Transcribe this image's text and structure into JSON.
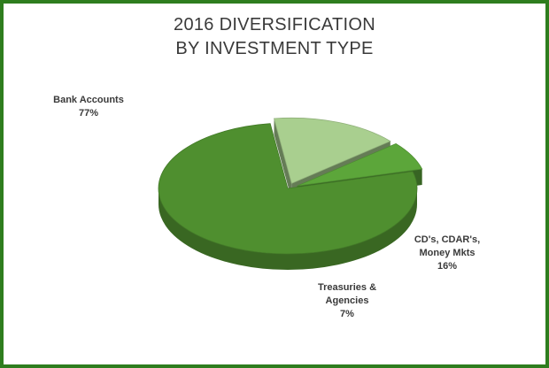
{
  "chart_data": {
    "type": "pie",
    "title_lines": [
      "2016 DIVERSIFICATION",
      "BY INVESTMENT TYPE"
    ],
    "slices": [
      {
        "label_lines": [
          "Bank Accounts"
        ],
        "value": 77,
        "value_label": "77%",
        "color": "#4f8f2f"
      },
      {
        "label_lines": [
          "CD's, CDAR's,",
          "Money Mkts"
        ],
        "value": 16,
        "value_label": "16%",
        "color": "#a9cf8f"
      },
      {
        "label_lines": [
          "Treasuries &",
          "Agencies"
        ],
        "value": 7,
        "value_label": "7%",
        "color": "#5ca63a"
      }
    ],
    "legend": "none",
    "style": "3d-exploded"
  },
  "colors": {
    "border": "#2e7d1e",
    "text": "#3a3a3a"
  }
}
